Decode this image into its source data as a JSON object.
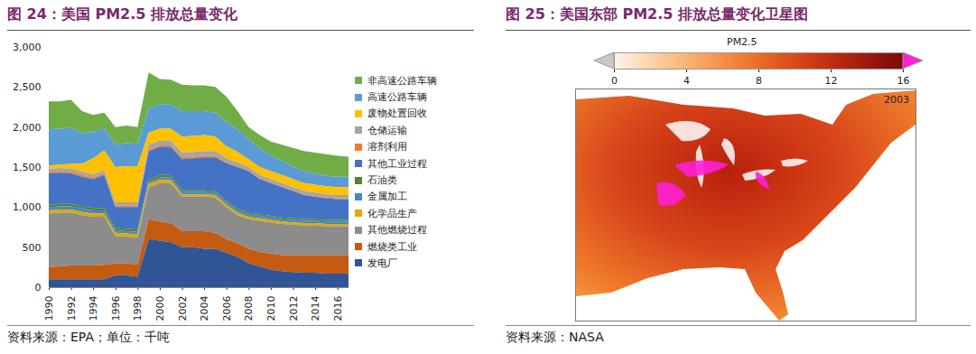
{
  "chart_data": [
    {
      "type": "area",
      "title": "图 24：美国 PM2.5 排放总量变化",
      "source": "资料来源：EPA；单位：千吨",
      "stacked": true,
      "grid": false,
      "legend": "right",
      "x": [
        1990,
        1991,
        1992,
        1993,
        1994,
        1995,
        1996,
        1997,
        1998,
        1999,
        2000,
        2001,
        2002,
        2003,
        2004,
        2005,
        2006,
        2007,
        2008,
        2009,
        2010,
        2011,
        2012,
        2013,
        2014,
        2015,
        2016,
        2017
      ],
      "xlim": [
        1990,
        2017
      ],
      "xticks": [
        1990,
        1992,
        1994,
        1996,
        1998,
        2000,
        2002,
        2004,
        2006,
        2008,
        2010,
        2012,
        2014,
        2016
      ],
      "ylim": [
        0,
        3000
      ],
      "yticks": [
        0,
        500,
        {
          "value": 1000,
          "label": "1,000"
        },
        {
          "value": 1500,
          "label": "1,500"
        },
        {
          "value": 2000,
          "label": "2,000"
        },
        {
          "value": 2500,
          "label": "2,500"
        },
        {
          "value": 3000,
          "label": "3,000"
        }
      ],
      "series": [
        {
          "name": "非高速公路车辆",
          "color": "#70ad47",
          "values": [
            350,
            340,
            350,
            280,
            210,
            200,
            220,
            220,
            210,
            450,
            320,
            310,
            330,
            320,
            320,
            320,
            320,
            230,
            150,
            170,
            170,
            200,
            230,
            250,
            260,
            270,
            260,
            250
          ]
        },
        {
          "name": "高速公路车辆",
          "color": "#5b9bd5",
          "values": [
            450,
            450,
            450,
            380,
            330,
            270,
            280,
            290,
            280,
            300,
            300,
            300,
            320,
            310,
            300,
            300,
            300,
            280,
            250,
            230,
            200,
            180,
            160,
            150,
            140,
            130,
            130,
            130
          ]
        },
        {
          "name": "废物处置回收",
          "color": "#ffc000",
          "values": [
            40,
            40,
            60,
            100,
            200,
            250,
            440,
            450,
            450,
            150,
            150,
            150,
            200,
            200,
            200,
            180,
            150,
            130,
            100,
            100,
            100,
            100,
            100,
            100,
            100,
            100,
            100,
            100
          ]
        },
        {
          "name": "仓储运输",
          "color": "#a5a5a5",
          "values": [
            40,
            40,
            40,
            40,
            40,
            40,
            40,
            40,
            40,
            60,
            60,
            60,
            60,
            60,
            60,
            60,
            50,
            50,
            40,
            40,
            40,
            40,
            40,
            40,
            40,
            40,
            40,
            40
          ]
        },
        {
          "name": "溶剂利用",
          "color": "#ed7d31",
          "values": [
            20,
            20,
            20,
            20,
            20,
            20,
            20,
            20,
            20,
            20,
            20,
            20,
            20,
            20,
            20,
            20,
            10,
            10,
            10,
            10,
            10,
            10,
            10,
            10,
            10,
            10,
            10,
            10
          ]
        },
        {
          "name": "其他工业过程",
          "color": "#4472c4",
          "values": [
            390,
            390,
            380,
            370,
            360,
            410,
            260,
            270,
            280,
            350,
            350,
            350,
            390,
            400,
            410,
            420,
            470,
            520,
            520,
            440,
            410,
            380,
            340,
            300,
            280,
            270,
            260,
            260
          ]
        },
        {
          "name": "石油类",
          "color": "#548235",
          "values": [
            30,
            30,
            30,
            30,
            30,
            30,
            30,
            30,
            30,
            30,
            30,
            30,
            20,
            20,
            20,
            20,
            20,
            20,
            20,
            20,
            20,
            20,
            20,
            20,
            20,
            20,
            20,
            20
          ]
        },
        {
          "name": "金属加工",
          "color": "#4b86c4",
          "values": [
            40,
            40,
            40,
            40,
            40,
            40,
            30,
            30,
            30,
            30,
            30,
            30,
            30,
            30,
            30,
            30,
            30,
            30,
            30,
            30,
            30,
            30,
            30,
            30,
            30,
            30,
            30,
            30
          ]
        },
        {
          "name": "化学品生产",
          "color": "#e0a800",
          "values": [
            40,
            40,
            40,
            40,
            40,
            40,
            40,
            40,
            40,
            40,
            40,
            40,
            30,
            30,
            30,
            30,
            30,
            30,
            30,
            30,
            30,
            30,
            30,
            30,
            30,
            30,
            30,
            30
          ]
        },
        {
          "name": "其他燃烧过程",
          "color": "#8c8c8c",
          "values": [
            670,
            670,
            660,
            630,
            610,
            600,
            340,
            330,
            340,
            400,
            480,
            500,
            430,
            430,
            430,
            440,
            400,
            350,
            370,
            390,
            390,
            390,
            380,
            370,
            370,
            360,
            360,
            360
          ]
        },
        {
          "name": "燃烧类工业",
          "color": "#c55a11",
          "values": [
            150,
            160,
            170,
            170,
            170,
            180,
            150,
            150,
            150,
            250,
            240,
            240,
            200,
            200,
            220,
            200,
            170,
            170,
            180,
            180,
            200,
            200,
            210,
            220,
            220,
            230,
            230,
            230
          ]
        },
        {
          "name": "发电厂",
          "color": "#2f5597",
          "values": [
            100,
            100,
            100,
            100,
            100,
            100,
            150,
            150,
            130,
            600,
            580,
            560,
            500,
            500,
            480,
            480,
            430,
            380,
            300,
            260,
            220,
            200,
            190,
            180,
            180,
            170,
            170,
            170
          ]
        }
      ]
    },
    {
      "type": "map",
      "title": "图 25：美国东部 PM2.5 排放总量变化卫星图",
      "source": "资料来源：NASA",
      "annotation": "2003",
      "colorbar": {
        "label": "PM2.5",
        "range": [
          0,
          16
        ],
        "ticks": [
          0,
          4,
          8,
          12,
          16
        ]
      }
    }
  ]
}
